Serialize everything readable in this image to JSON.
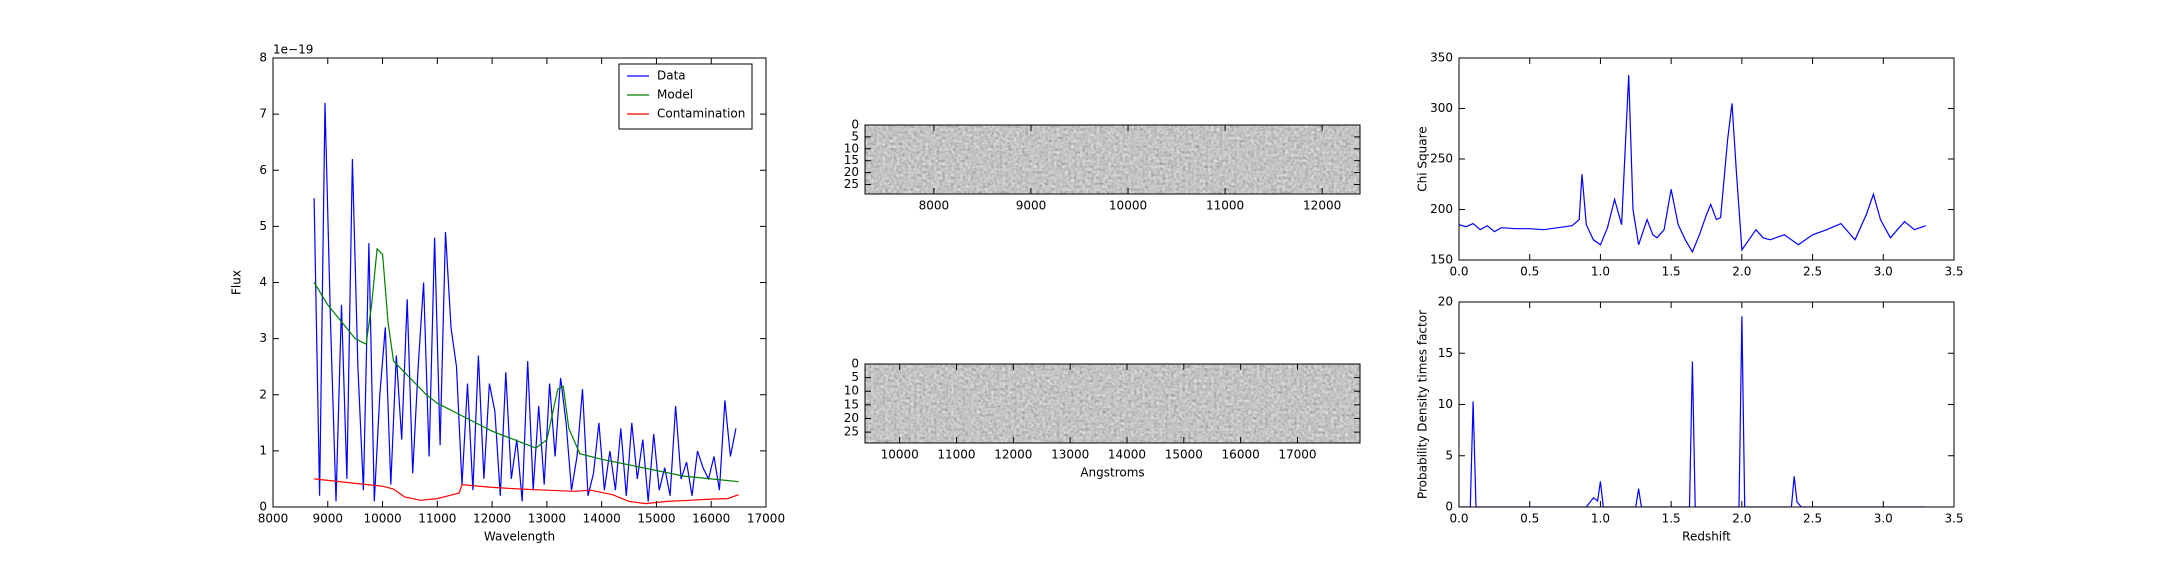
{
  "chart_data": [
    {
      "type": "line",
      "xlabel": "Wavelength",
      "ylabel": "Flux",
      "offset_text": "1e−19",
      "xlim": [
        8000,
        17000
      ],
      "xticks": [
        8000,
        9000,
        10000,
        11000,
        12000,
        13000,
        14000,
        15000,
        16000,
        17000
      ],
      "ylim": [
        0,
        8
      ],
      "yticks": [
        0,
        1,
        2,
        3,
        4,
        5,
        6,
        7,
        8
      ],
      "legend": "upper-right",
      "series": [
        {
          "name": "Data",
          "color": "#0000ff",
          "x": [
            8750,
            8850,
            8950,
            9050,
            9150,
            9250,
            9350,
            9450,
            9550,
            9650,
            9750,
            9850,
            9950,
            10050,
            10150,
            10250,
            10350,
            10450,
            10550,
            10650,
            10750,
            10850,
            10950,
            11050,
            11150,
            11250,
            11350,
            11450,
            11550,
            11650,
            11750,
            11850,
            11950,
            12050,
            12150,
            12250,
            12350,
            12450,
            12550,
            12650,
            12750,
            12850,
            12950,
            13050,
            13150,
            13250,
            13350,
            13450,
            13550,
            13650,
            13750,
            13850,
            13950,
            14050,
            14150,
            14250,
            14350,
            14450,
            14550,
            14650,
            14750,
            14850,
            14950,
            15050,
            15150,
            15250,
            15350,
            15450,
            15550,
            15650,
            15750,
            15850,
            15950,
            16050,
            16150,
            16250,
            16350,
            16450
          ],
          "values": [
            5.5,
            0.2,
            7.2,
            3.3,
            0.1,
            3.6,
            0.5,
            6.2,
            2.5,
            0.3,
            4.7,
            0.1,
            2.0,
            3.2,
            0.4,
            2.7,
            1.2,
            3.7,
            0.6,
            2.5,
            4.0,
            0.9,
            4.8,
            1.1,
            4.9,
            3.2,
            2.5,
            0.4,
            2.2,
            0.3,
            2.7,
            0.5,
            2.2,
            1.7,
            0.2,
            2.4,
            0.5,
            1.2,
            0.1,
            2.6,
            0.3,
            1.8,
            0.4,
            2.2,
            0.9,
            2.3,
            1.5,
            0.3,
            0.9,
            2.1,
            0.2,
            0.6,
            1.5,
            0.3,
            1.0,
            0.3,
            1.4,
            0.2,
            1.5,
            0.5,
            1.2,
            0.1,
            1.3,
            0.3,
            0.7,
            0.2,
            1.8,
            0.5,
            0.8,
            0.2,
            1.0,
            0.7,
            0.5,
            0.9,
            0.3,
            1.9,
            0.9,
            1.4
          ]
        },
        {
          "name": "Model",
          "color": "#008000",
          "x": [
            8750,
            9000,
            9250,
            9500,
            9700,
            9800,
            9900,
            10000,
            10100,
            10200,
            10400,
            10600,
            10800,
            11000,
            11200,
            11400,
            11600,
            11800,
            12000,
            12400,
            12800,
            13000,
            13200,
            13300,
            13400,
            13600,
            14000,
            14500,
            15000,
            15500,
            16000,
            16500
          ],
          "values": [
            4.0,
            3.6,
            3.3,
            3.0,
            2.9,
            3.6,
            4.6,
            4.5,
            3.3,
            2.6,
            2.4,
            2.2,
            2.0,
            1.85,
            1.75,
            1.65,
            1.55,
            1.45,
            1.35,
            1.2,
            1.05,
            1.2,
            2.1,
            2.15,
            1.4,
            0.95,
            0.85,
            0.75,
            0.65,
            0.55,
            0.5,
            0.45
          ]
        },
        {
          "name": "Contamination",
          "color": "#ff0000",
          "x": [
            8750,
            9500,
            10000,
            10200,
            10400,
            10700,
            11000,
            11200,
            11400,
            11450,
            12000,
            12500,
            13000,
            13500,
            13800,
            14200,
            14500,
            14800,
            15200,
            15600,
            16000,
            16300,
            16500
          ],
          "values": [
            0.5,
            0.42,
            0.37,
            0.32,
            0.18,
            0.12,
            0.15,
            0.2,
            0.25,
            0.4,
            0.35,
            0.32,
            0.3,
            0.28,
            0.3,
            0.22,
            0.1,
            0.06,
            0.1,
            0.12,
            0.14,
            0.15,
            0.22
          ]
        }
      ]
    },
    {
      "type": "image",
      "xlim": [
        7290,
        12390
      ],
      "xticks": [
        8000,
        9000,
        10000,
        11000,
        12000
      ],
      "ylim": [
        0,
        29
      ],
      "yticks": [
        0,
        5,
        10,
        15,
        20,
        25
      ],
      "yinvert": true
    },
    {
      "type": "image",
      "xlabel": "Angstroms",
      "xlim": [
        9390,
        18100
      ],
      "xticks": [
        10000,
        11000,
        12000,
        13000,
        14000,
        15000,
        16000,
        17000
      ],
      "ylim": [
        0,
        29
      ],
      "yticks": [
        0,
        5,
        10,
        15,
        20,
        25
      ],
      "yinvert": true
    },
    {
      "type": "line",
      "ylabel": "Chi Square",
      "xlim": [
        0,
        3.5
      ],
      "xticks": [
        {
          "value": 0,
          "label": "0.0"
        },
        0.5,
        {
          "value": 1,
          "label": "1.0"
        },
        1.5,
        {
          "value": 2,
          "label": "2.0"
        },
        2.5,
        {
          "value": 3,
          "label": "3.0"
        },
        3.5
      ],
      "ylim": [
        150,
        350
      ],
      "yticks": [
        150,
        200,
        250,
        300,
        350
      ],
      "series": [
        {
          "color": "#0000ff",
          "x": [
            0,
            0.05,
            0.1,
            0.15,
            0.2,
            0.25,
            0.3,
            0.4,
            0.5,
            0.6,
            0.7,
            0.8,
            0.85,
            0.87,
            0.9,
            0.95,
            1.0,
            1.05,
            1.1,
            1.15,
            1.2,
            1.23,
            1.27,
            1.33,
            1.37,
            1.4,
            1.45,
            1.5,
            1.55,
            1.6,
            1.65,
            1.7,
            1.75,
            1.78,
            1.82,
            1.85,
            1.9,
            1.93,
            1.96,
            2.0,
            2.05,
            2.1,
            2.15,
            2.2,
            2.3,
            2.4,
            2.5,
            2.6,
            2.7,
            2.8,
            2.88,
            2.93,
            2.98,
            3.05,
            3.1,
            3.15,
            3.22,
            3.3
          ],
          "values": [
            185,
            183,
            186,
            180,
            184,
            178,
            182,
            181,
            181,
            180,
            182,
            184,
            190,
            235,
            185,
            170,
            165,
            182,
            210,
            185,
            333,
            200,
            165,
            190,
            175,
            172,
            180,
            220,
            185,
            170,
            158,
            175,
            195,
            205,
            190,
            192,
            270,
            305,
            240,
            160,
            170,
            180,
            172,
            170,
            175,
            165,
            175,
            180,
            186,
            170,
            195,
            215,
            190,
            172,
            180,
            188,
            180,
            184
          ]
        }
      ]
    },
    {
      "type": "line",
      "xlabel": "Redshift",
      "ylabel": "Probability Density times factor",
      "xlim": [
        0,
        3.5
      ],
      "xticks": [
        {
          "value": 0,
          "label": "0.0"
        },
        0.5,
        {
          "value": 1,
          "label": "1.0"
        },
        1.5,
        {
          "value": 2,
          "label": "2.0"
        },
        2.5,
        {
          "value": 3,
          "label": "3.0"
        },
        3.5
      ],
      "ylim": [
        0,
        20
      ],
      "yticks": [
        0,
        5,
        10,
        15,
        20
      ],
      "series": [
        {
          "color": "#0000ff",
          "x": [
            0,
            0.08,
            0.1,
            0.12,
            0.9,
            0.95,
            0.98,
            1.0,
            1.02,
            1.05,
            1.25,
            1.27,
            1.29,
            1.63,
            1.65,
            1.67,
            1.98,
            2.0,
            2.02,
            2.35,
            2.37,
            2.39,
            2.42,
            3.0,
            3.3
          ],
          "values": [
            0,
            0,
            10.3,
            0,
            0,
            0.9,
            0.6,
            2.5,
            0,
            0,
            0,
            1.8,
            0,
            0,
            14.2,
            0,
            0,
            18.6,
            0,
            0,
            3.0,
            0.5,
            0,
            0,
            0
          ]
        }
      ]
    }
  ]
}
